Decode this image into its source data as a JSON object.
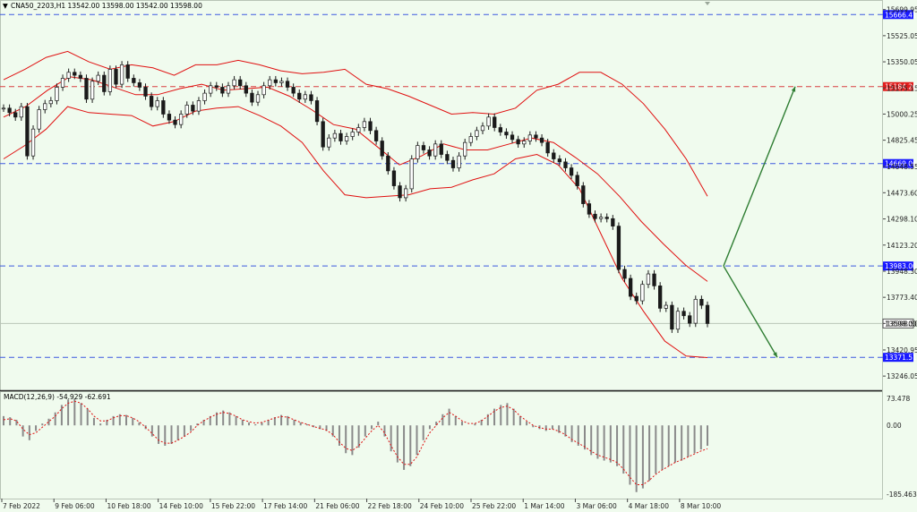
{
  "chart_data": {
    "type": "candlestick",
    "symbol_header": "CNA50_2203,H1  13542.00 13598.00 13542.00 13598.00",
    "main_y_ticks": [
      15699.95,
      15525.05,
      15350.05,
      15175.15,
      15000.25,
      14825.45,
      14648.55,
      14473.6,
      14298.1,
      14123.2,
      13948.3,
      13773.4,
      13598.5,
      13420.95,
      13246.05
    ],
    "main_ylim": [
      13175,
      15740
    ],
    "x_labels": [
      "7 Feb 2022",
      "9 Feb 06:00",
      "10 Feb 18:00",
      "14 Feb 10:00",
      "15 Feb 22:00",
      "17 Feb 14:00",
      "21 Feb 06:00",
      "22 Feb 18:00",
      "24 Feb 10:00",
      "25 Feb 22:00",
      "1 Mar 14:00",
      "3 Mar 06:00",
      "4 Mar 18:00",
      "8 Mar 10:00"
    ],
    "horizontal_levels": [
      {
        "label": "15666.41",
        "value": 15666.41,
        "color": "#3d5be0",
        "style": "dashed",
        "badge_bg": "#1a1aff"
      },
      {
        "label": "15184.26",
        "value": 15184.26,
        "color": "#d94040",
        "style": "dashed",
        "badge_bg": "#e11d1d"
      },
      {
        "label": "14669.06",
        "value": 14669.06,
        "color": "#3d5be0",
        "style": "dashed",
        "badge_bg": "#1a1aff"
      },
      {
        "label": "13983.00",
        "value": 13983.0,
        "color": "#3d5be0",
        "style": "dashed",
        "badge_bg": "#1a1aff"
      },
      {
        "label": "13371.51",
        "value": 13371.51,
        "color": "#3d5be0",
        "style": "dashed",
        "badge_bg": "#1a1aff"
      }
    ],
    "current_price": {
      "label": "13598.00",
      "value": 13598.0
    },
    "close_series_approx": [
      15040,
      15010,
      14980,
      15050,
      14720,
      14900,
      15030,
      15070,
      15090,
      15180,
      15240,
      15280,
      15260,
      15240,
      15100,
      15220,
      15260,
      15150,
      15300,
      15200,
      15330,
      15240,
      15210,
      15180,
      15120,
      15050,
      15090,
      15000,
      14960,
      14930,
      15000,
      15060,
      15020,
      15090,
      15140,
      15190,
      15180,
      15140,
      15190,
      15230,
      15190,
      15140,
      15080,
      15130,
      15190,
      15230,
      15210,
      15220,
      15180,
      15140,
      15100,
      15130,
      15090,
      14950,
      14780,
      14840,
      14870,
      14820,
      14850,
      14880,
      14910,
      14950,
      14890,
      14820,
      14720,
      14620,
      14520,
      14440,
      14500,
      14700,
      14790,
      14760,
      14720,
      14800,
      14730,
      14690,
      14640,
      14720,
      14810,
      14850,
      14890,
      14920,
      14980,
      14910,
      14880,
      14860,
      14830,
      14800,
      14820,
      14860,
      14840,
      14810,
      14740,
      14700,
      14680,
      14640,
      14590,
      14520,
      14400,
      14330,
      14300,
      14310,
      14300,
      14250,
      13960,
      13900,
      13780,
      13750,
      13860,
      13930,
      13850,
      13700,
      13720,
      13560,
      13680,
      13650,
      13600,
      13760,
      13720,
      13598
    ],
    "bollinger_upper_approx": [
      15230,
      15300,
      15380,
      15420,
      15350,
      15300,
      15330,
      15310,
      15260,
      15330,
      15330,
      15360,
      15330,
      15290,
      15270,
      15280,
      15300,
      15200,
      15170,
      15120,
      15060,
      15000,
      15010,
      15000,
      15040,
      15160,
      15200,
      15280,
      15280,
      15200,
      15070,
      14900,
      14700,
      14450
    ],
    "bollinger_middle_approx": [
      14980,
      15050,
      15160,
      15250,
      15230,
      15180,
      15130,
      15130,
      15170,
      15200,
      15160,
      15170,
      15180,
      15120,
      15030,
      14930,
      14900,
      14780,
      14660,
      14720,
      14800,
      14760,
      14760,
      14800,
      14840,
      14810,
      14710,
      14600,
      14450,
      14280,
      14130,
      13990,
      13880
    ],
    "bollinger_lower_approx": [
      14700,
      14790,
      14900,
      15050,
      15010,
      15000,
      14990,
      14920,
      14950,
      15020,
      15040,
      15050,
      14990,
      14920,
      14810,
      14620,
      14460,
      14440,
      14450,
      14460,
      14500,
      14510,
      14560,
      14600,
      14700,
      14730,
      14660,
      14500,
      14200,
      13900,
      13680,
      13480,
      13380,
      13370
    ],
    "macd": {
      "label": "MACD(12,26,9) -54.929 -62.691",
      "y_ticks": [
        73.478,
        0.0,
        -185.463
      ],
      "ylim": [
        -195,
        85
      ],
      "histogram_approx": [
        25,
        22,
        15,
        -30,
        -40,
        -15,
        5,
        18,
        35,
        55,
        70,
        72,
        60,
        45,
        20,
        5,
        15,
        25,
        30,
        28,
        20,
        8,
        -10,
        -30,
        -50,
        -55,
        -50,
        -40,
        -30,
        -15,
        5,
        15,
        25,
        35,
        40,
        35,
        25,
        15,
        8,
        3,
        8,
        15,
        22,
        28,
        25,
        15,
        8,
        3,
        -5,
        -10,
        -15,
        -30,
        -55,
        -75,
        -80,
        -60,
        -30,
        -10,
        10,
        -30,
        -70,
        -100,
        -120,
        -110,
        -80,
        -40,
        -10,
        10,
        30,
        45,
        25,
        10,
        0,
        5,
        15,
        30,
        45,
        55,
        60,
        45,
        25,
        10,
        -5,
        -10,
        -15,
        -10,
        -20,
        -30,
        -45,
        -55,
        -65,
        -80,
        -90,
        -95,
        -100,
        -110,
        -130,
        -160,
        -180,
        -170,
        -150,
        -130,
        -120,
        -110,
        -100,
        -95,
        -85,
        -75,
        -65,
        -55
      ],
      "signal_approx": [
        15,
        18,
        12,
        -10,
        -25,
        -20,
        -5,
        10,
        25,
        45,
        60,
        65,
        60,
        45,
        25,
        12,
        12,
        20,
        26,
        26,
        20,
        10,
        -5,
        -22,
        -40,
        -48,
        -48,
        -40,
        -30,
        -18,
        0,
        12,
        22,
        30,
        35,
        32,
        25,
        15,
        10,
        6,
        8,
        14,
        20,
        24,
        22,
        15,
        8,
        3,
        -3,
        -8,
        -13,
        -25,
        -45,
        -62,
        -68,
        -55,
        -35,
        -15,
        0,
        -20,
        -55,
        -85,
        -105,
        -105,
        -85,
        -50,
        -20,
        0,
        20,
        35,
        25,
        12,
        5,
        5,
        12,
        25,
        38,
        48,
        52,
        42,
        25,
        12,
        0,
        -6,
        -10,
        -10,
        -16,
        -25,
        -38,
        -48,
        -58,
        -70,
        -80,
        -86,
        -92,
        -100,
        -118,
        -140,
        -160,
        -160,
        -148,
        -132,
        -120,
        -110,
        -100,
        -93,
        -85,
        -77,
        -69,
        -63
      ]
    },
    "annotations": [
      {
        "type": "arrow",
        "color": "#2e7d32",
        "from": {
          "x_index": 808,
          "y": 13983.0
        },
        "to": {
          "x_index": 888,
          "y": 15184.26
        }
      },
      {
        "type": "arrow",
        "color": "#2e7d32",
        "from": {
          "x_index": 808,
          "y": 13983.0
        },
        "to": {
          "x_index": 868,
          "y": 13371.51
        }
      }
    ]
  }
}
